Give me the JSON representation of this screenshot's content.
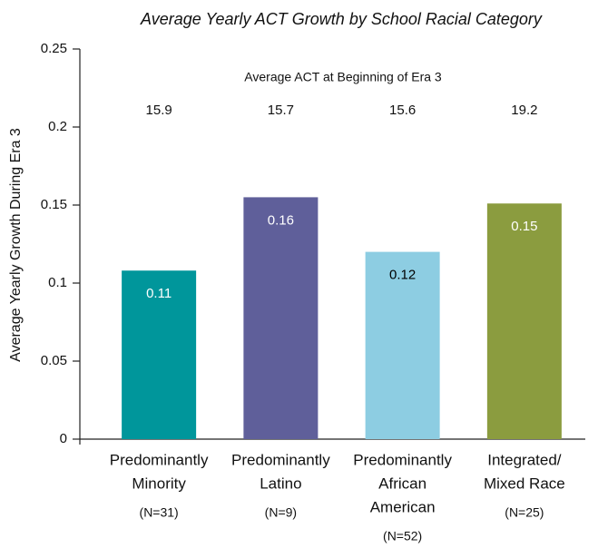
{
  "chart_data": {
    "type": "bar",
    "title": "Average Yearly ACT Growth by School Racial Category",
    "y_label": "Average Yearly Growth During Era 3",
    "annotation": "Average ACT at Beginning of Era 3",
    "categories": [
      [
        "Predominantly",
        "Minority"
      ],
      [
        "Predominantly",
        "Latino"
      ],
      [
        "Predominantly",
        "African",
        "American"
      ],
      [
        "Integrated/",
        "Mixed Race"
      ]
    ],
    "sample_sizes": [
      "(N=31)",
      "(N=9)",
      "(N=52)",
      "(N=25)"
    ],
    "act_values": [
      15.9,
      15.7,
      15.6,
      19.2
    ],
    "values": [
      0.108,
      0.155,
      0.12,
      0.151
    ],
    "value_labels": [
      "0.11",
      "0.16",
      "0.12",
      "0.15"
    ],
    "colors": [
      "#00969b",
      "#5f5f9a",
      "#8dcde2",
      "#8b9c3f"
    ],
    "label_colors": [
      "#ffffff",
      "#ffffff",
      "#000000",
      "#ffffff"
    ],
    "ylim": [
      0,
      0.25
    ],
    "yticks": [
      0,
      0.05,
      0.1,
      0.15,
      0.2,
      0.25
    ],
    "grid": false
  }
}
